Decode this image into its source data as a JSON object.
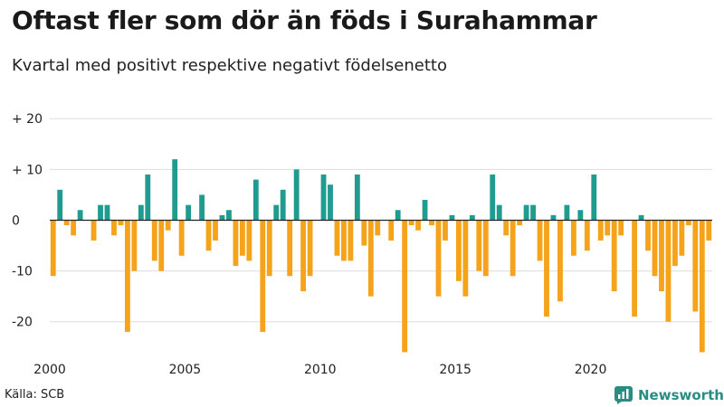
{
  "header": {
    "title": "Oftast fler som dör än föds i Surahammar",
    "subtitle": "Kvartal med positivt respektive negativt födelsenetto"
  },
  "footer": {
    "source": "Källa: SCB",
    "brand": "Newsworthy"
  },
  "colors": {
    "positive": "#1f9b8f",
    "negative": "#f5a31b",
    "grid": "#dddddd",
    "zero_line": "#222222",
    "brand": "#2a8c83"
  },
  "chart_data": {
    "type": "bar",
    "title": "Oftast fler som dör än föds i Surahammar",
    "subtitle": "Kvartal med positivt respektive negativt födelsenetto",
    "xlabel": "",
    "ylabel": "",
    "x_start": 2000,
    "periods_per_year": 4,
    "ylim": [
      -27,
      22
    ],
    "y_ticks": [
      {
        "value": 20,
        "label": "+ 20"
      },
      {
        "value": 10,
        "label": "+ 10"
      },
      {
        "value": 0,
        "label": "0"
      },
      {
        "value": -10,
        "label": "-10"
      },
      {
        "value": -20,
        "label": "-20"
      }
    ],
    "x_ticks": [
      {
        "value": 2000,
        "label": "2000"
      },
      {
        "value": 2005,
        "label": "2005"
      },
      {
        "value": 2010,
        "label": "2010"
      },
      {
        "value": 2015,
        "label": "2015"
      },
      {
        "value": 2020,
        "label": "2020"
      }
    ],
    "values": [
      -11,
      6,
      -1,
      -3,
      2,
      0,
      -4,
      3,
      3,
      -3,
      -1,
      -22,
      -10,
      3,
      9,
      -8,
      -10,
      -2,
      12,
      -7,
      3,
      0,
      5,
      -6,
      -4,
      1,
      2,
      -9,
      -7,
      -8,
      8,
      -22,
      -11,
      3,
      6,
      -11,
      10,
      -14,
      -11,
      0,
      9,
      7,
      -7,
      -8,
      -8,
      9,
      -5,
      -15,
      -3,
      0,
      -4,
      2,
      -26,
      -1,
      -2,
      4,
      -1,
      -15,
      -4,
      1,
      -12,
      -15,
      1,
      -10,
      -11,
      9,
      3,
      -3,
      -11,
      -1,
      3,
      3,
      -8,
      -19,
      1,
      -16,
      3,
      -7,
      2,
      -6,
      9,
      -4,
      -3,
      -14,
      -3,
      0,
      -19,
      1,
      -6,
      -11,
      -14,
      -20,
      -9,
      -7,
      -1,
      -18,
      -26,
      -4
    ]
  }
}
